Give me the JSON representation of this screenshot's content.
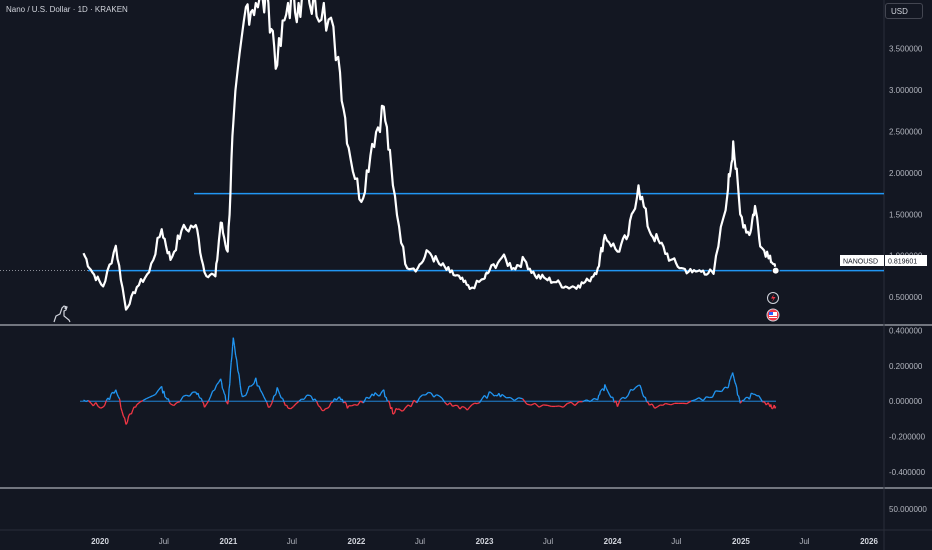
{
  "header": {
    "title": "Nano / U.S. Dollar · 1D · KRAKEN",
    "currency": "USD"
  },
  "colors": {
    "background": "#131722",
    "price_line": "#ffffff",
    "level_line": "#2196f3",
    "osc_positive": "#2196f3",
    "osc_negative": "#f23645"
  },
  "price_label": {
    "symbol": "NANOUSD",
    "value": "0.819601"
  },
  "price_axis_ticks": [
    "3.500000",
    "3.000000",
    "2.500000",
    "2.000000",
    "1.500000",
    "1.000000",
    "0.500000"
  ],
  "osc_axis_ticks": [
    "0.400000",
    "0.200000",
    "0.000000",
    "-0.200000",
    "-0.400000"
  ],
  "pane3_axis_ticks": [
    "50.000000"
  ],
  "time_ticks": [
    {
      "label": "2020",
      "bold": true
    },
    {
      "label": "Jul",
      "bold": false
    },
    {
      "label": "2021",
      "bold": true
    },
    {
      "label": "Jul",
      "bold": false
    },
    {
      "label": "2022",
      "bold": true
    },
    {
      "label": "Jul",
      "bold": false
    },
    {
      "label": "2023",
      "bold": true
    },
    {
      "label": "Jul",
      "bold": false
    },
    {
      "label": "2024",
      "bold": true
    },
    {
      "label": "Jul",
      "bold": false
    },
    {
      "label": "2025",
      "bold": true
    },
    {
      "label": "Jul",
      "bold": false
    },
    {
      "label": "2026",
      "bold": true
    }
  ],
  "icons": [
    "lightning-icon",
    "us-flag-icon",
    "tradingview-dino-icon"
  ],
  "chart_data": [
    {
      "type": "line",
      "title": "Nano / U.S. Dollar · 1D · KRAKEN",
      "y_scale": "linear",
      "y_range": [
        0.2,
        4.05
      ],
      "x_range": [
        "2019-11-01",
        "2026-03-01"
      ],
      "series": [
        {
          "name": "NANOUSD",
          "points": [
            [
              "2019-11-15",
              1.03
            ],
            [
              "2019-12-10",
              0.8
            ],
            [
              "2020-01-10",
              0.63
            ],
            [
              "2020-02-15",
              1.12
            ],
            [
              "2020-03-15",
              0.35
            ],
            [
              "2020-04-15",
              0.62
            ],
            [
              "2020-05-20",
              0.8
            ],
            [
              "2020-06-25",
              1.32
            ],
            [
              "2020-07-20",
              0.95
            ],
            [
              "2020-08-20",
              1.3
            ],
            [
              "2020-09-30",
              1.37
            ],
            [
              "2020-10-25",
              0.8
            ],
            [
              "2020-11-25",
              0.75
            ],
            [
              "2020-12-10",
              1.4
            ],
            [
              "2020-12-30",
              1.05
            ],
            [
              "2021-01-15",
              2.6
            ],
            [
              "2021-02-20",
              4.0
            ],
            [
              "2021-03-20",
              4.05
            ],
            [
              "2021-04-25",
              4.05
            ],
            [
              "2021-05-20",
              3.3
            ],
            [
              "2021-06-20",
              4.05
            ],
            [
              "2021-07-20",
              4.05
            ],
            [
              "2021-08-20",
              4.05
            ],
            [
              "2021-09-30",
              4.05
            ],
            [
              "2021-11-10",
              3.4
            ],
            [
              "2021-12-10",
              2.3
            ],
            [
              "2022-01-15",
              1.65
            ],
            [
              "2022-02-15",
              2.35
            ],
            [
              "2022-03-20",
              2.8
            ],
            [
              "2022-04-15",
              1.85
            ],
            [
              "2022-05-20",
              0.9
            ],
            [
              "2022-06-25",
              0.85
            ],
            [
              "2022-07-25",
              1.05
            ],
            [
              "2022-08-25",
              0.9
            ],
            [
              "2022-09-25",
              0.8
            ],
            [
              "2022-10-25",
              0.72
            ],
            [
              "2022-11-20",
              0.6
            ],
            [
              "2022-12-30",
              0.72
            ],
            [
              "2023-01-15",
              0.82
            ],
            [
              "2023-02-20",
              0.98
            ],
            [
              "2023-03-25",
              0.85
            ],
            [
              "2023-04-25",
              0.95
            ],
            [
              "2023-05-25",
              0.76
            ],
            [
              "2023-06-25",
              0.72
            ],
            [
              "2023-07-25",
              0.68
            ],
            [
              "2023-08-25",
              0.62
            ],
            [
              "2023-09-25",
              0.64
            ],
            [
              "2023-10-25",
              0.7
            ],
            [
              "2023-11-20",
              0.85
            ],
            [
              "2023-12-10",
              1.25
            ],
            [
              "2024-01-15",
              1.05
            ],
            [
              "2024-02-15",
              1.25
            ],
            [
              "2024-03-15",
              1.85
            ],
            [
              "2024-04-15",
              1.3
            ],
            [
              "2024-05-15",
              1.15
            ],
            [
              "2024-06-15",
              0.95
            ],
            [
              "2024-07-15",
              0.85
            ],
            [
              "2024-08-15",
              0.8
            ],
            [
              "2024-09-15",
              0.82
            ],
            [
              "2024-10-15",
              0.78
            ],
            [
              "2024-11-25",
              1.8
            ],
            [
              "2024-12-10",
              2.38
            ],
            [
              "2024-12-30",
              1.5
            ],
            [
              "2025-01-25",
              1.25
            ],
            [
              "2025-02-10",
              1.6
            ],
            [
              "2025-02-28",
              1.1
            ],
            [
              "2025-03-25",
              1.0
            ],
            [
              "2025-04-10",
              0.82
            ]
          ]
        }
      ],
      "horizontal_levels": [
        1.75,
        0.82
      ],
      "last_value": 0.819601,
      "y_ticks": [
        3.5,
        3.0,
        2.5,
        2.0,
        1.5,
        1.0,
        0.5
      ],
      "x_ticks": [
        "2020",
        "Jul",
        "2021",
        "Jul",
        "2022",
        "Jul",
        "2023",
        "Jul",
        "2024",
        "Jul",
        "2025",
        "Jul",
        "2026"
      ],
      "grid": false
    },
    {
      "type": "area",
      "title": "",
      "y_range": [
        -0.48,
        0.42
      ],
      "series": [
        {
          "name": "",
          "points": [
            [
              "2019-11-15",
              0.0
            ],
            [
              "2020-01-10",
              -0.03
            ],
            [
              "2020-02-15",
              0.07
            ],
            [
              "2020-03-15",
              -0.12
            ],
            [
              "2020-04-15",
              -0.02
            ],
            [
              "2020-06-25",
              0.07
            ],
            [
              "2020-07-20",
              -0.02
            ],
            [
              "2020-09-30",
              0.06
            ],
            [
              "2020-10-25",
              -0.03
            ],
            [
              "2020-12-10",
              0.12
            ],
            [
              "2020-12-30",
              -0.03
            ],
            [
              "2021-01-15",
              0.35
            ],
            [
              "2021-02-10",
              0.02
            ],
            [
              "2021-03-20",
              0.12
            ],
            [
              "2021-04-25",
              -0.04
            ],
            [
              "2021-05-20",
              0.07
            ],
            [
              "2021-06-20",
              -0.04
            ],
            [
              "2021-08-20",
              0.04
            ],
            [
              "2021-09-30",
              -0.05
            ],
            [
              "2021-11-10",
              0.03
            ],
            [
              "2021-12-10",
              -0.04
            ],
            [
              "2022-02-15",
              0.03
            ],
            [
              "2022-03-20",
              0.05
            ],
            [
              "2022-04-15",
              -0.06
            ],
            [
              "2022-05-20",
              -0.04
            ],
            [
              "2022-07-25",
              0.05
            ],
            [
              "2022-09-25",
              -0.02
            ],
            [
              "2022-11-20",
              -0.04
            ],
            [
              "2023-01-15",
              0.04
            ],
            [
              "2023-02-20",
              0.03
            ],
            [
              "2023-05-25",
              -0.02
            ],
            [
              "2023-08-25",
              -0.02
            ],
            [
              "2023-11-20",
              0.02
            ],
            [
              "2023-12-10",
              0.08
            ],
            [
              "2024-01-15",
              -0.02
            ],
            [
              "2024-03-15",
              0.1
            ],
            [
              "2024-04-15",
              -0.03
            ],
            [
              "2024-06-15",
              -0.02
            ],
            [
              "2024-09-15",
              0.01
            ],
            [
              "2024-11-25",
              0.08
            ],
            [
              "2024-12-10",
              0.16
            ],
            [
              "2024-12-30",
              -0.02
            ],
            [
              "2025-02-10",
              0.05
            ],
            [
              "2025-03-25",
              -0.03
            ],
            [
              "2025-04-10",
              -0.03
            ]
          ]
        }
      ],
      "y_ticks": [
        0.4,
        0.2,
        0.0,
        -0.2,
        -0.4
      ],
      "grid": false
    }
  ]
}
